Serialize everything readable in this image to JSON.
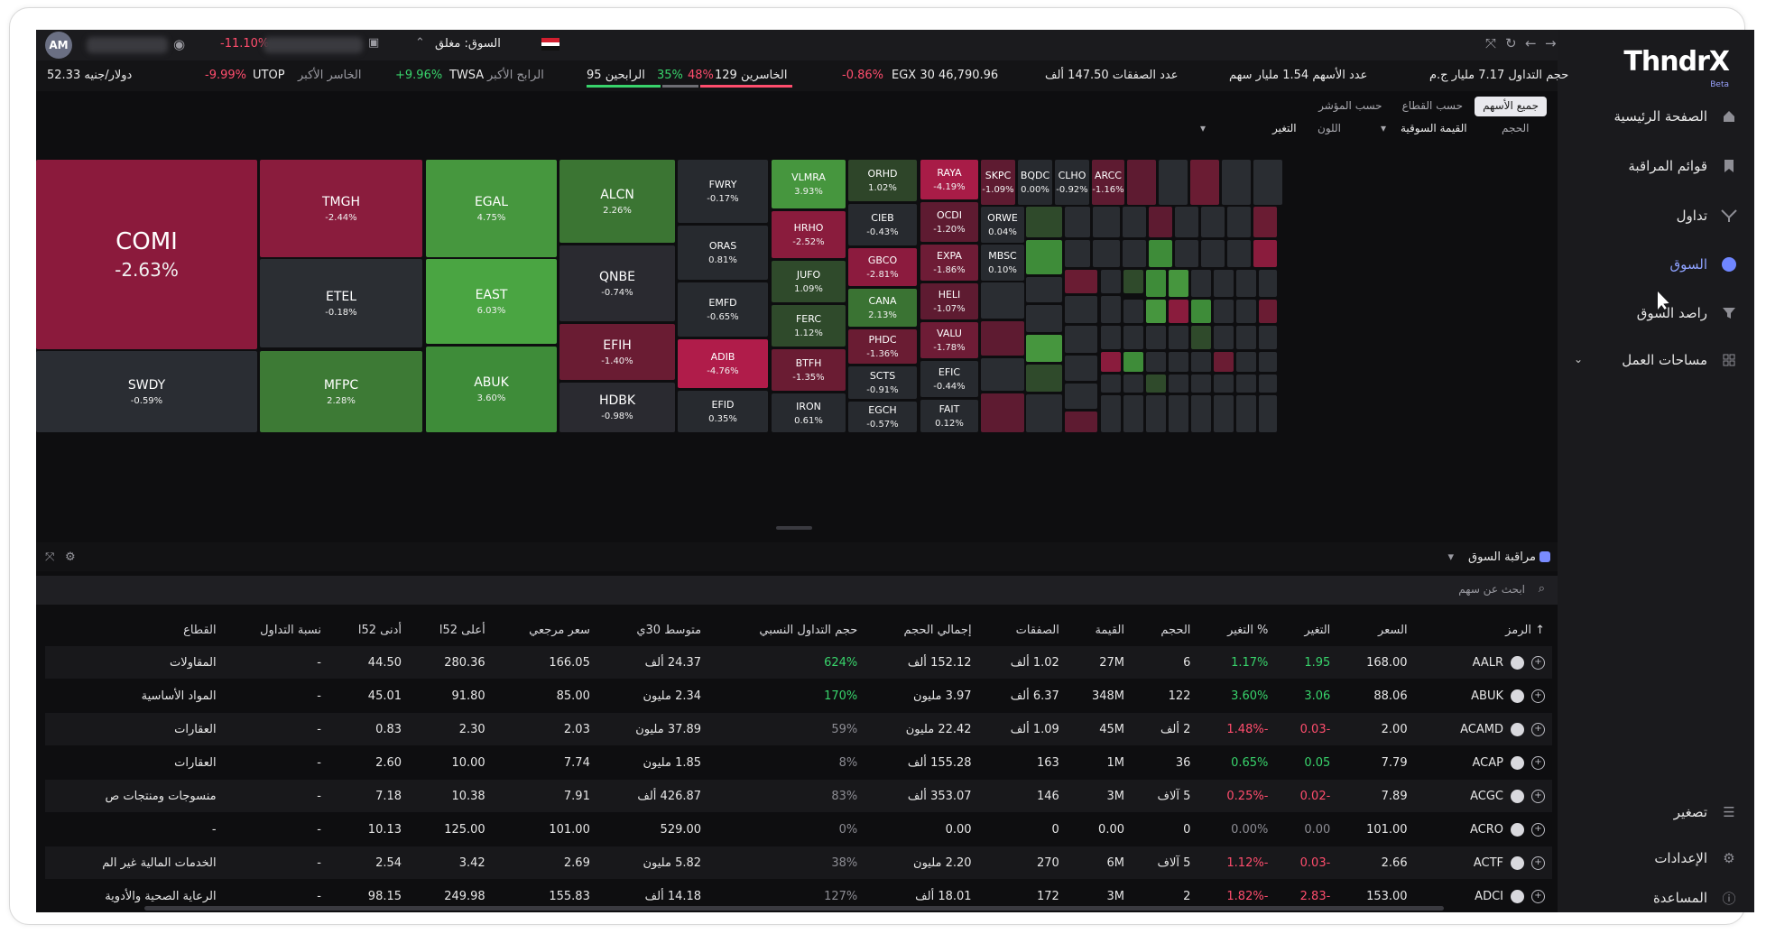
{
  "sidebar": {
    "logo": "ThndrX",
    "logo_badge": "Beta",
    "items": [
      {
        "label": "الصفحة الرئيسية",
        "icon": "home-icon"
      },
      {
        "label": "قوائم المراقبة",
        "icon": "bookmark-icon"
      },
      {
        "label": "تداول",
        "icon": "trade-icon"
      },
      {
        "label": "السوق",
        "icon": "globe-icon"
      },
      {
        "label": "راصد السوق",
        "icon": "filter-icon"
      },
      {
        "label": "مساحات العمل",
        "icon": "grid-icon"
      }
    ],
    "bottom": [
      {
        "label": "تصغير",
        "icon": "collapse-icon"
      },
      {
        "label": "الإعدادات",
        "icon": "gear-icon"
      },
      {
        "label": "المساعدة",
        "icon": "help-icon"
      }
    ]
  },
  "topbar": {
    "avatar": "AM",
    "change": "-11.10%",
    "market_status": "السوق: مغلق"
  },
  "ticker": {
    "trade_value": "حجم التداول 7.17 مليار ج.م",
    "shares": "عدد الأسهم 1.54 مليار سهم",
    "deals": "عدد الصفقات 147.50 ألف",
    "egx": "EGX 30 46,790.96",
    "egx_chg": "-0.86%",
    "losers": "الخاسرين 129",
    "losers_pct": "48%",
    "winners_pct": "35%",
    "winners": "95 الرابحين",
    "top_gainer_label": "الرابح الأكبر",
    "top_gainer": "TWSA",
    "top_gainer_chg": "+9.96%",
    "top_loser_label": "الخاسر الأكبر",
    "top_loser": "UTOP",
    "top_loser_chg": "-9.99%",
    "usd": "دولار/جنيه 52.33"
  },
  "heatmap_controls": {
    "tabs": [
      "جميع الأسهم",
      "حسب القطاع",
      "حسب المؤشر"
    ],
    "size_label": "الحجم",
    "size_value": "القيمة السوقية",
    "color_label": "اللون",
    "color_value": "التغير"
  },
  "heatmap": [
    {
      "sym": "COMI",
      "chg": "-2.63%",
      "color": "#8b1a3c"
    },
    {
      "sym": "SWDY",
      "chg": "-0.59%",
      "color": "#2a2d33"
    },
    {
      "sym": "TMGH",
      "chg": "-2.44%",
      "color": "#8a1c3d"
    },
    {
      "sym": "ETEL",
      "chg": "-0.18%",
      "color": "#2b2e33"
    },
    {
      "sym": "MFPC",
      "chg": "2.28%",
      "color": "#3d7a35"
    },
    {
      "sym": "EGAL",
      "chg": "4.75%",
      "color": "#46973e"
    },
    {
      "sym": "EAST",
      "chg": "6.03%",
      "color": "#4aa542"
    },
    {
      "sym": "ABUK",
      "chg": "3.60%",
      "color": "#3e8c39"
    },
    {
      "sym": "ALCN",
      "chg": "2.26%",
      "color": "#3b7533"
    },
    {
      "sym": "QNBE",
      "chg": "-0.74%",
      "color": "#2a2a30"
    },
    {
      "sym": "EFIH",
      "chg": "-1.40%",
      "color": "#6a1c33"
    },
    {
      "sym": "HDBK",
      "chg": "-0.98%",
      "color": "#2a2a30"
    },
    {
      "sym": "FWRY",
      "chg": "-0.17%",
      "color": "#272a2f"
    },
    {
      "sym": "ORAS",
      "chg": "0.81%",
      "color": "#272a2f"
    },
    {
      "sym": "EMFD",
      "chg": "-0.65%",
      "color": "#272a2f"
    },
    {
      "sym": "ADIB",
      "chg": "-4.76%",
      "color": "#b01c4a"
    },
    {
      "sym": "EFID",
      "chg": "0.35%",
      "color": "#272a2f"
    },
    {
      "sym": "VLMRA",
      "chg": "3.93%",
      "color": "#46963e"
    },
    {
      "sym": "HRHO",
      "chg": "-2.52%",
      "color": "#8a1c3d"
    },
    {
      "sym": "JUFO",
      "chg": "1.09%",
      "color": "#2f4a2b"
    },
    {
      "sym": "FERC",
      "chg": "1.12%",
      "color": "#2f4a2b"
    },
    {
      "sym": "BTFH",
      "chg": "-1.35%",
      "color": "#6a1c33"
    },
    {
      "sym": "IRON",
      "chg": "0.61%",
      "color": "#272a2f"
    },
    {
      "sym": "ORHD",
      "chg": "1.02%",
      "color": "#2e4529"
    },
    {
      "sym": "CIEB",
      "chg": "-0.43%",
      "color": "#272a2f"
    },
    {
      "sym": "GBCO",
      "chg": "-2.81%",
      "color": "#8c1b3e"
    },
    {
      "sym": "CANA",
      "chg": "2.13%",
      "color": "#3a7333"
    },
    {
      "sym": "PHDC",
      "chg": "-1.36%",
      "color": "#6a1c33"
    },
    {
      "sym": "SCTS",
      "chg": "-0.91%",
      "color": "#272a2f"
    },
    {
      "sym": "EGCH",
      "chg": "-0.57%",
      "color": "#272a2f"
    },
    {
      "sym": "RAYA",
      "chg": "-4.19%",
      "color": "#a81c47"
    },
    {
      "sym": "OCDI",
      "chg": "-1.20%",
      "color": "#5e1b31"
    },
    {
      "sym": "EXPA",
      "chg": "-1.86%",
      "color": "#6e1c36"
    },
    {
      "sym": "HELI",
      "chg": "-1.07%",
      "color": "#5e1b31"
    },
    {
      "sym": "VALU",
      "chg": "-1.78%",
      "color": "#6e1c36"
    },
    {
      "sym": "EFIC",
      "chg": "-0.44%",
      "color": "#272a2f"
    },
    {
      "sym": "FAIT",
      "chg": "0.12%",
      "color": "#272a2f"
    },
    {
      "sym": "SKPC",
      "chg": "-1.09%",
      "color": "#5e1b31"
    },
    {
      "sym": "BQDC",
      "chg": "0.00%",
      "color": "#272a2f"
    },
    {
      "sym": "CLHO",
      "chg": "-0.92%",
      "color": "#272a2f"
    },
    {
      "sym": "ARCC",
      "chg": "-1.16%",
      "color": "#5e1b31"
    },
    {
      "sym": "ORWE",
      "chg": "0.04%",
      "color": "#272a2f"
    },
    {
      "sym": "MBSC",
      "chg": "0.10%",
      "color": "#272a2f"
    }
  ],
  "panel": {
    "title": "مراقبة السوق",
    "search_placeholder": "ابحث عن سهم"
  },
  "table": {
    "headers": [
      "الرمز",
      "السعر",
      "التغير",
      "% التغير",
      "الحجم",
      "القيمة",
      "الصفقات",
      "إجمالي الحجم",
      "حجم التداول النسبي",
      "متوسط 30ي",
      "سعر مرجعي",
      "أعلى 52ا",
      "أدنى 52ا",
      "نسبة التداول",
      "القطاع"
    ],
    "rows": [
      {
        "sym": "AALR",
        "price": "168.00",
        "chg": "1.95",
        "pct": "1.17%",
        "vol": "6",
        "val": "27M",
        "deals": "1.02 ألف",
        "tvol": "152.12 ألف",
        "rel": "624%",
        "avg": "24.37 ألف",
        "ref": "166.05",
        "hi": "280.36",
        "lo": "44.50",
        "ratio": "-",
        "sector": "المقاولات",
        "dir": "up",
        "reld": "up"
      },
      {
        "sym": "ABUK",
        "price": "88.06",
        "chg": "3.06",
        "pct": "3.60%",
        "vol": "122",
        "val": "348M",
        "deals": "6.37 ألف",
        "tvol": "3.97 مليون",
        "rel": "170%",
        "avg": "2.34 مليون",
        "ref": "85.00",
        "hi": "91.80",
        "lo": "45.01",
        "ratio": "-",
        "sector": "المواد الأساسية",
        "dir": "up",
        "reld": "up"
      },
      {
        "sym": "ACAMD",
        "price": "2.00",
        "chg": "-0.03",
        "pct": "-1.48%",
        "vol": "2 ألف",
        "val": "45M",
        "deals": "1.09 ألف",
        "tvol": "22.42 مليون",
        "rel": "59%",
        "avg": "37.89 مليون",
        "ref": "2.03",
        "hi": "2.30",
        "lo": "0.83",
        "ratio": "-",
        "sector": "العقارات",
        "dir": "down",
        "reld": "flat"
      },
      {
        "sym": "ACAP",
        "price": "7.79",
        "chg": "0.05",
        "pct": "0.65%",
        "vol": "36",
        "val": "1M",
        "deals": "163",
        "tvol": "155.28 ألف",
        "rel": "8%",
        "avg": "1.85 مليون",
        "ref": "7.74",
        "hi": "10.00",
        "lo": "2.60",
        "ratio": "-",
        "sector": "العقارات",
        "dir": "up",
        "reld": "flat"
      },
      {
        "sym": "ACGC",
        "price": "7.89",
        "chg": "-0.02",
        "pct": "-0.25%",
        "vol": "5 آلاف",
        "val": "3M",
        "deals": "146",
        "tvol": "353.07 ألف",
        "rel": "83%",
        "avg": "426.87 ألف",
        "ref": "7.91",
        "hi": "10.38",
        "lo": "7.18",
        "ratio": "-",
        "sector": "منسوجات ومنتجات ص",
        "dir": "down",
        "reld": "flat"
      },
      {
        "sym": "ACRO",
        "price": "101.00",
        "chg": "0.00",
        "pct": "0.00%",
        "vol": "0",
        "val": "0.00",
        "deals": "0",
        "tvol": "0.00",
        "rel": "0%",
        "avg": "529.00",
        "ref": "101.00",
        "hi": "125.00",
        "lo": "10.13",
        "ratio": "-",
        "sector": "-",
        "dir": "flat",
        "reld": "flat"
      },
      {
        "sym": "ACTF",
        "price": "2.66",
        "chg": "-0.03",
        "pct": "-1.12%",
        "vol": "5 آلاف",
        "val": "6M",
        "deals": "270",
        "tvol": "2.20 مليون",
        "rel": "38%",
        "avg": "5.82 مليون",
        "ref": "2.69",
        "hi": "3.42",
        "lo": "2.54",
        "ratio": "-",
        "sector": "الخدمات المالية غير الم",
        "dir": "down",
        "reld": "flat"
      },
      {
        "sym": "ADCI",
        "price": "153.00",
        "chg": "-2.83",
        "pct": "-1.82%",
        "vol": "2",
        "val": "3M",
        "deals": "172",
        "tvol": "18.01 ألف",
        "rel": "127%",
        "avg": "14.18 ألف",
        "ref": "155.83",
        "hi": "249.98",
        "lo": "98.15",
        "ratio": "-",
        "sector": "الرعاية الصحية والأدوية",
        "dir": "down",
        "reld": "flat"
      }
    ]
  },
  "colors": {
    "up": "#38d36b",
    "down": "#ff4d6d",
    "flat": "#8c8c93",
    "accent": "#7a8cff"
  }
}
